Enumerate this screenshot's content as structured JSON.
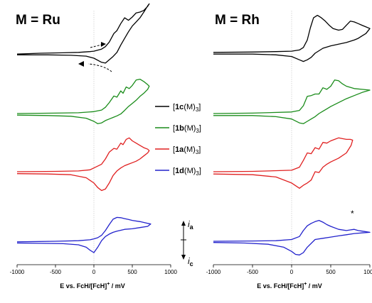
{
  "chart_data": [
    {
      "type": "line",
      "title": "M = Ru",
      "xlabel": "E vs. FcH/[FcH]+ / mV",
      "xlim": [
        -1000,
        1000
      ],
      "xticks": [
        -1000,
        -500,
        0,
        500,
        1000
      ],
      "series": [
        {
          "name": "[1c(M)3]",
          "color": "#000000",
          "x": [
            -1000,
            -700,
            -400,
            -200,
            -50,
            0,
            100,
            150,
            200,
            260,
            300,
            350,
            400,
            450,
            500,
            550,
            600,
            650,
            700,
            720,
            700,
            650,
            600,
            550,
            500,
            450,
            400,
            350,
            300,
            250,
            200,
            150,
            100,
            0,
            -100,
            -300,
            -600,
            -1000
          ],
          "y": [
            -0.02,
            0.0,
            0.01,
            0.02,
            0.04,
            0.05,
            0.1,
            0.16,
            0.27,
            0.48,
            0.55,
            0.72,
            0.86,
            0.8,
            0.88,
            0.98,
            1.0,
            1.04,
            1.14,
            1.2,
            1.15,
            1.0,
            0.86,
            0.76,
            0.66,
            0.52,
            0.36,
            0.2,
            0.02,
            -0.08,
            -0.16,
            -0.24,
            -0.22,
            -0.12,
            -0.07,
            -0.05,
            -0.04,
            -0.04
          ]
        },
        {
          "name": "[1b(M)3]",
          "color": "#1a8c1a",
          "x": [
            -1000,
            -500,
            -200,
            0,
            100,
            150,
            200,
            260,
            300,
            350,
            380,
            420,
            460,
            500,
            550,
            600,
            650,
            700,
            720,
            700,
            650,
            600,
            550,
            500,
            450,
            400,
            350,
            300,
            250,
            200,
            150,
            100,
            50,
            0,
            -100,
            -300,
            -600,
            -1000
          ],
          "y": [
            0.0,
            0.01,
            0.02,
            0.05,
            0.09,
            0.16,
            0.28,
            0.45,
            0.42,
            0.58,
            0.52,
            0.68,
            0.64,
            0.72,
            0.86,
            0.88,
            0.82,
            0.74,
            0.7,
            0.62,
            0.52,
            0.44,
            0.34,
            0.26,
            0.18,
            0.08,
            -0.01,
            -0.06,
            -0.1,
            -0.14,
            -0.18,
            -0.24,
            -0.26,
            -0.2,
            -0.12,
            -0.07,
            -0.05,
            -0.04
          ]
        },
        {
          "name": "[1a(M)3]",
          "color": "#e02020",
          "x": [
            -1000,
            -500,
            -200,
            -50,
            0,
            100,
            150,
            200,
            260,
            300,
            350,
            380,
            420,
            460,
            500,
            550,
            600,
            650,
            700,
            720,
            700,
            650,
            600,
            550,
            500,
            450,
            400,
            350,
            300,
            250,
            200,
            150,
            100,
            50,
            0,
            -100,
            -300,
            -600,
            -1000
          ],
          "y": [
            0.0,
            0.01,
            0.02,
            0.05,
            0.1,
            0.2,
            0.34,
            0.52,
            0.62,
            0.6,
            0.76,
            0.72,
            0.86,
            0.9,
            0.82,
            0.76,
            0.7,
            0.64,
            0.6,
            0.56,
            0.5,
            0.42,
            0.34,
            0.28,
            0.24,
            0.2,
            0.16,
            0.1,
            0.02,
            -0.1,
            -0.3,
            -0.46,
            -0.5,
            -0.42,
            -0.3,
            -0.16,
            -0.08,
            -0.06,
            -0.05
          ]
        },
        {
          "name": "[1d(M)3]",
          "color": "#2222cc",
          "x": [
            -1000,
            -500,
            -200,
            -50,
            0,
            50,
            100,
            150,
            200,
            250,
            300,
            350,
            400,
            450,
            500,
            600,
            700,
            740,
            700,
            600,
            500,
            400,
            300,
            250,
            200,
            150,
            100,
            50,
            0,
            -50,
            -100,
            -200,
            -400,
            -700,
            -1000
          ],
          "y": [
            -0.02,
            0.0,
            0.02,
            0.05,
            0.08,
            0.12,
            0.2,
            0.36,
            0.56,
            0.74,
            0.8,
            0.79,
            0.76,
            0.73,
            0.7,
            0.66,
            0.6,
            0.58,
            0.5,
            0.46,
            0.42,
            0.4,
            0.34,
            0.3,
            0.24,
            0.16,
            0.02,
            -0.2,
            -0.38,
            -0.3,
            -0.2,
            -0.12,
            -0.08,
            -0.07,
            -0.06
          ]
        }
      ]
    },
    {
      "type": "line",
      "title": "M = Rh",
      "xlabel": "E vs. FcH/[FcH]+ / mV",
      "xlim": [
        -1000,
        1000
      ],
      "xticks": [
        -1000,
        -500,
        0,
        500,
        1000
      ],
      "series": [
        {
          "name": "[1c(M)3]",
          "color": "#000000",
          "x": [
            -1000,
            -500,
            -200,
            0,
            100,
            150,
            200,
            240,
            280,
            330,
            380,
            430,
            480,
            530,
            600,
            650,
            700,
            750,
            800,
            850,
            900,
            950,
            1000,
            950,
            900,
            850,
            800,
            700,
            600,
            500,
            400,
            300,
            250,
            200,
            150,
            100,
            0,
            -200,
            -500,
            -1000
          ],
          "y": [
            0.02,
            0.03,
            0.04,
            0.05,
            0.08,
            0.14,
            0.32,
            0.62,
            0.86,
            0.92,
            0.86,
            0.78,
            0.68,
            0.6,
            0.56,
            0.58,
            0.68,
            0.78,
            0.76,
            0.72,
            0.68,
            0.64,
            0.6,
            0.48,
            0.42,
            0.36,
            0.32,
            0.26,
            0.22,
            0.18,
            0.12,
            0.0,
            -0.1,
            -0.16,
            -0.2,
            -0.16,
            -0.08,
            -0.04,
            -0.02,
            -0.02
          ]
        },
        {
          "name": "[1b(M)3]",
          "color": "#1a8c1a",
          "x": [
            -1000,
            -500,
            0,
            100,
            150,
            200,
            250,
            300,
            350,
            400,
            450,
            500,
            550,
            600,
            650,
            700,
            800,
            900,
            1000,
            900,
            800,
            700,
            600,
            500,
            450,
            400,
            350,
            300,
            250,
            200,
            150,
            100,
            0,
            -200,
            -500,
            -1000
          ],
          "y": [
            0.0,
            0.01,
            0.04,
            0.08,
            0.2,
            0.44,
            0.46,
            0.5,
            0.5,
            0.66,
            0.62,
            0.7,
            0.86,
            0.84,
            0.76,
            0.7,
            0.64,
            0.62,
            0.6,
            0.54,
            0.46,
            0.38,
            0.28,
            0.18,
            0.12,
            0.06,
            0.0,
            -0.08,
            -0.14,
            -0.2,
            -0.26,
            -0.24,
            -0.14,
            -0.08,
            -0.05,
            -0.05
          ]
        },
        {
          "name": "[1a(M)3]",
          "color": "#e02020",
          "x": [
            -1000,
            -500,
            0,
            100,
            150,
            200,
            250,
            300,
            350,
            400,
            450,
            500,
            550,
            600,
            650,
            700,
            750,
            780,
            760,
            700,
            600,
            500,
            450,
            400,
            350,
            300,
            250,
            200,
            150,
            100,
            0,
            -200,
            -500,
            -1000
          ],
          "y": [
            0.0,
            0.01,
            0.04,
            0.12,
            0.3,
            0.5,
            0.48,
            0.64,
            0.6,
            0.78,
            0.76,
            0.82,
            0.86,
            0.9,
            0.88,
            0.86,
            0.86,
            0.84,
            0.7,
            0.5,
            0.36,
            0.26,
            0.2,
            0.12,
            -0.02,
            0.0,
            -0.22,
            -0.3,
            -0.36,
            -0.44,
            -0.3,
            -0.14,
            -0.08,
            -0.06
          ]
        },
        {
          "name": "[1d(M)3]",
          "color": "#2222cc",
          "x": [
            -1000,
            -500,
            -200,
            0,
            100,
            150,
            200,
            250,
            300,
            350,
            400,
            450,
            500,
            600,
            700,
            750,
            800,
            850,
            900,
            1000,
            900,
            800,
            700,
            600,
            500,
            400,
            300,
            200,
            150,
            100,
            50,
            0,
            -100,
            -300,
            -600,
            -1000
          ],
          "y": [
            0.0,
            0.01,
            0.02,
            0.06,
            0.16,
            0.36,
            0.52,
            0.6,
            0.66,
            0.7,
            0.64,
            0.56,
            0.5,
            0.4,
            0.36,
            0.38,
            0.4,
            0.36,
            0.34,
            0.3,
            0.28,
            0.26,
            0.22,
            0.18,
            0.14,
            0.1,
            0.06,
            -0.2,
            -0.38,
            -0.46,
            -0.44,
            -0.34,
            -0.2,
            -0.1,
            -0.06,
            -0.04
          ]
        }
      ]
    }
  ],
  "legend": [
    {
      "pre": "[",
      "bold": "1c",
      "post": "(M)",
      "sub": "3",
      "close": "]",
      "color": "#000000"
    },
    {
      "pre": "[",
      "bold": "1b",
      "post": "(M)",
      "sub": "3",
      "close": "]",
      "color": "#1a8c1a"
    },
    {
      "pre": "[",
      "bold": "1a",
      "post": "(M)",
      "sub": "3",
      "close": "]",
      "color": "#e02020"
    },
    {
      "pre": "[",
      "bold": "1d",
      "post": "(M)",
      "sub": "3",
      "close": "]",
      "color": "#2222cc"
    }
  ],
  "axis_title": {
    "main": "E vs. FcH/[FcH]",
    "sup": "+",
    "tail": " / mV"
  },
  "current_scale": {
    "anodic": "i",
    "anodic_sub": "a",
    "cathodic": "i",
    "cathodic_sub": "c"
  },
  "annotation": "*"
}
